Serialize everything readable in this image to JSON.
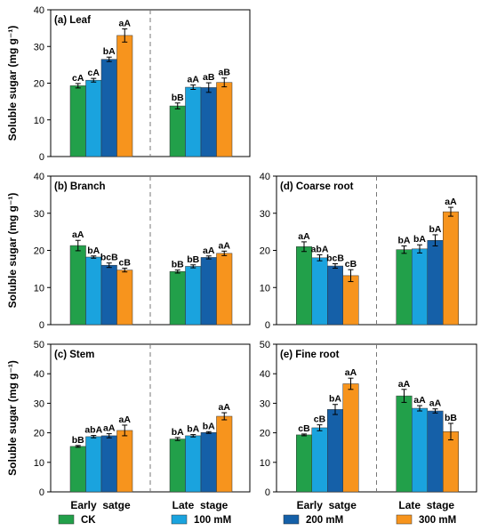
{
  "colors": {
    "CK": "#22a04a",
    "100 mM": "#1aa3de",
    "200 mM": "#1560a8",
    "300 mM": "#f7941d"
  },
  "legend": [
    "CK",
    "100 mM",
    "200 mM",
    "300 mM"
  ],
  "ylabel": "Soluble sugar (mg g⁻¹)",
  "xcategories": [
    "Early  satge",
    "Late  stage"
  ],
  "chart_data": [
    {
      "type": "bar",
      "title": "(a) Leaf",
      "ylim": [
        0,
        40
      ],
      "yticks": [
        0,
        10,
        20,
        30,
        40
      ],
      "categories": [
        "Early satge",
        "Late stage"
      ],
      "series": [
        {
          "name": "CK",
          "values": [
            19.3,
            13.8
          ],
          "errors": [
            0.6,
            0.8
          ],
          "labels": [
            "cA",
            "bB"
          ]
        },
        {
          "name": "100 mM",
          "values": [
            20.8,
            18.9
          ],
          "errors": [
            0.5,
            0.6
          ],
          "labels": [
            "cA",
            "aA"
          ]
        },
        {
          "name": "200 mM",
          "values": [
            26.5,
            18.8
          ],
          "errors": [
            0.6,
            1.3
          ],
          "labels": [
            "bA",
            "aB"
          ]
        },
        {
          "name": "300 mM",
          "values": [
            33.0,
            20.2
          ],
          "errors": [
            1.8,
            1.2
          ],
          "labels": [
            "aA",
            "aB"
          ]
        }
      ]
    },
    {
      "type": "bar",
      "title": "(b) Branch",
      "ylim": [
        0,
        40
      ],
      "yticks": [
        0,
        10,
        20,
        30,
        40
      ],
      "categories": [
        "Early satge",
        "Late stage"
      ],
      "series": [
        {
          "name": "CK",
          "values": [
            21.3,
            14.3
          ],
          "errors": [
            1.4,
            0.4
          ],
          "labels": [
            "aA",
            "bB"
          ]
        },
        {
          "name": "100 mM",
          "values": [
            18.2,
            15.7
          ],
          "errors": [
            0.3,
            0.4
          ],
          "labels": [
            "bA",
            "bB"
          ]
        },
        {
          "name": "200 mM",
          "values": [
            16.0,
            18.1
          ],
          "errors": [
            0.6,
            0.4
          ],
          "labels": [
            "bcB",
            "aA"
          ]
        },
        {
          "name": "300 mM",
          "values": [
            14.7,
            19.2
          ],
          "errors": [
            0.5,
            0.6
          ],
          "labels": [
            "cB",
            "aA"
          ]
        }
      ]
    },
    {
      "type": "bar",
      "title": "(c) Stem",
      "ylim": [
        0,
        50
      ],
      "yticks": [
        0,
        10,
        20,
        30,
        40,
        50
      ],
      "categories": [
        "Early satge",
        "Late stage"
      ],
      "series": [
        {
          "name": "CK",
          "values": [
            15.4,
            17.9
          ],
          "errors": [
            0.3,
            0.5
          ],
          "labels": [
            "bB",
            "bA"
          ]
        },
        {
          "name": "100 mM",
          "values": [
            18.7,
            19.0
          ],
          "errors": [
            0.4,
            0.4
          ],
          "labels": [
            "abA",
            "bA"
          ]
        },
        {
          "name": "200 mM",
          "values": [
            19.0,
            20.1
          ],
          "errors": [
            0.7,
            0.3
          ],
          "labels": [
            "aA",
            "bA"
          ]
        },
        {
          "name": "300 mM",
          "values": [
            20.8,
            25.6
          ],
          "errors": [
            1.8,
            1.2
          ],
          "labels": [
            "aA",
            "aA"
          ]
        }
      ]
    },
    {
      "type": "bar",
      "title": "(d) Coarse root",
      "ylim": [
        0,
        40
      ],
      "yticks": [
        0,
        10,
        20,
        30,
        40
      ],
      "categories": [
        "Early satge",
        "Late stage"
      ],
      "series": [
        {
          "name": "CK",
          "values": [
            21.0,
            20.2
          ],
          "errors": [
            1.3,
            1.0
          ],
          "labels": [
            "aA",
            "bA"
          ]
        },
        {
          "name": "100 mM",
          "values": [
            18.0,
            20.4
          ],
          "errors": [
            0.8,
            1.1
          ],
          "labels": [
            "abA",
            "bA"
          ]
        },
        {
          "name": "200 mM",
          "values": [
            15.8,
            22.7
          ],
          "errors": [
            0.6,
            1.5
          ],
          "labels": [
            "bcB",
            "bA"
          ]
        },
        {
          "name": "300 mM",
          "values": [
            13.2,
            30.4
          ],
          "errors": [
            1.6,
            1.2
          ],
          "labels": [
            "cB",
            "aA"
          ]
        }
      ]
    },
    {
      "type": "bar",
      "title": "(e) Fine root",
      "ylim": [
        0,
        50
      ],
      "yticks": [
        0,
        10,
        20,
        30,
        40,
        50
      ],
      "categories": [
        "Early satge",
        "Late stage"
      ],
      "series": [
        {
          "name": "CK",
          "values": [
            19.3,
            32.5
          ],
          "errors": [
            0.3,
            2.2
          ],
          "labels": [
            "cB",
            "aA"
          ]
        },
        {
          "name": "100 mM",
          "values": [
            21.7,
            28.3
          ],
          "errors": [
            1.0,
            0.9
          ],
          "labels": [
            "cB",
            "aA"
          ]
        },
        {
          "name": "200 mM",
          "values": [
            27.9,
            27.4
          ],
          "errors": [
            1.7,
            0.7
          ],
          "labels": [
            "bA",
            "aA"
          ]
        },
        {
          "name": "300 mM",
          "values": [
            36.6,
            20.4
          ],
          "errors": [
            1.9,
            2.8
          ],
          "labels": [
            "aA",
            "bB"
          ]
        }
      ]
    }
  ]
}
